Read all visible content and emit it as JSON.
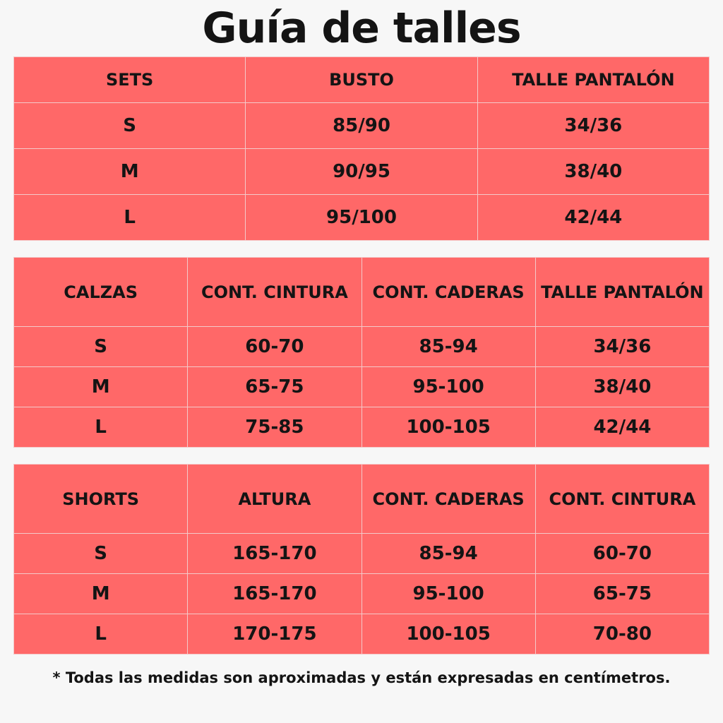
{
  "title": "Guía de talles",
  "tables": [
    {
      "headers": [
        "SETS",
        "BUSTO",
        "TALLE PANTALÓN"
      ],
      "rows": [
        [
          "S",
          "85/90",
          "34/36"
        ],
        [
          "M",
          "90/95",
          "38/40"
        ],
        [
          "L",
          "95/100",
          "42/44"
        ]
      ]
    },
    {
      "headers": [
        "CALZAS",
        "CONT. CINTURA",
        "CONT. CADERAS",
        "TALLE PANTALÓN"
      ],
      "rows": [
        [
          "S",
          "60-70",
          "85-94",
          "34/36"
        ],
        [
          "M",
          "65-75",
          "95-100",
          "38/40"
        ],
        [
          "L",
          "75-85",
          "100-105",
          "42/44"
        ]
      ]
    },
    {
      "headers": [
        "SHORTS",
        "ALTURA",
        "CONT. CADERAS",
        "CONT. CINTURA"
      ],
      "rows": [
        [
          "S",
          "165-170",
          "85-94",
          "60-70"
        ],
        [
          "M",
          "165-170",
          "95-100",
          "65-75"
        ],
        [
          "L",
          "170-175",
          "100-105",
          "70-80"
        ]
      ]
    }
  ],
  "footnote": "* Todas las medidas son aproximadas y están expresadas en centímetros.",
  "colors": {
    "table_fill": "#ff6868",
    "grid": "#f4c9c9",
    "text": "#141414",
    "background": "#f7f7f7"
  }
}
